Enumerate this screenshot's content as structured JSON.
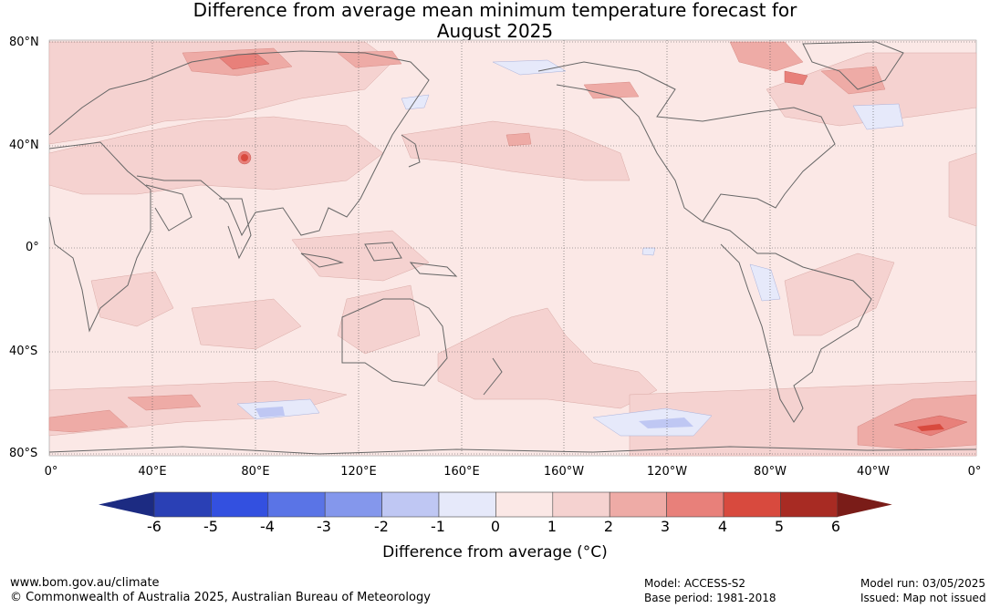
{
  "title_line1": "Difference from average mean minimum temperature forecast for",
  "title_line2": "August 2025",
  "lat_labels": [
    "80°N",
    "40°N",
    "0°",
    "40°S",
    "80°S"
  ],
  "lon_labels": [
    "0°",
    "40°E",
    "80°E",
    "120°E",
    "160°E",
    "160°W",
    "120°W",
    "80°W",
    "40°W",
    "0°"
  ],
  "colorbar": {
    "ticks": [
      "-6",
      "-5",
      "-4",
      "-3",
      "-2",
      "-1",
      "0",
      "1",
      "2",
      "3",
      "4",
      "5",
      "6"
    ],
    "label": "Difference from average (°C)",
    "colors": [
      "#1c2b82",
      "#2a40b5",
      "#3350e0",
      "#5a74e6",
      "#8497ec",
      "#bfc7f3",
      "#e6e9fa",
      "#fbe8e6",
      "#f5d2d0",
      "#eeaba6",
      "#e8807a",
      "#d84a3e",
      "#a82b23",
      "#7a1c18"
    ]
  },
  "footer": {
    "website": "www.bom.gov.au/climate",
    "copyright": "© Commonwealth of Australia 2025, Australian Bureau of Meteorology",
    "model": "Model: ACCESS-S2",
    "base_period": "Base period: 1981-2018",
    "model_run": "Model run: 03/05/2025",
    "issued": "Issued: Map not issued"
  }
}
